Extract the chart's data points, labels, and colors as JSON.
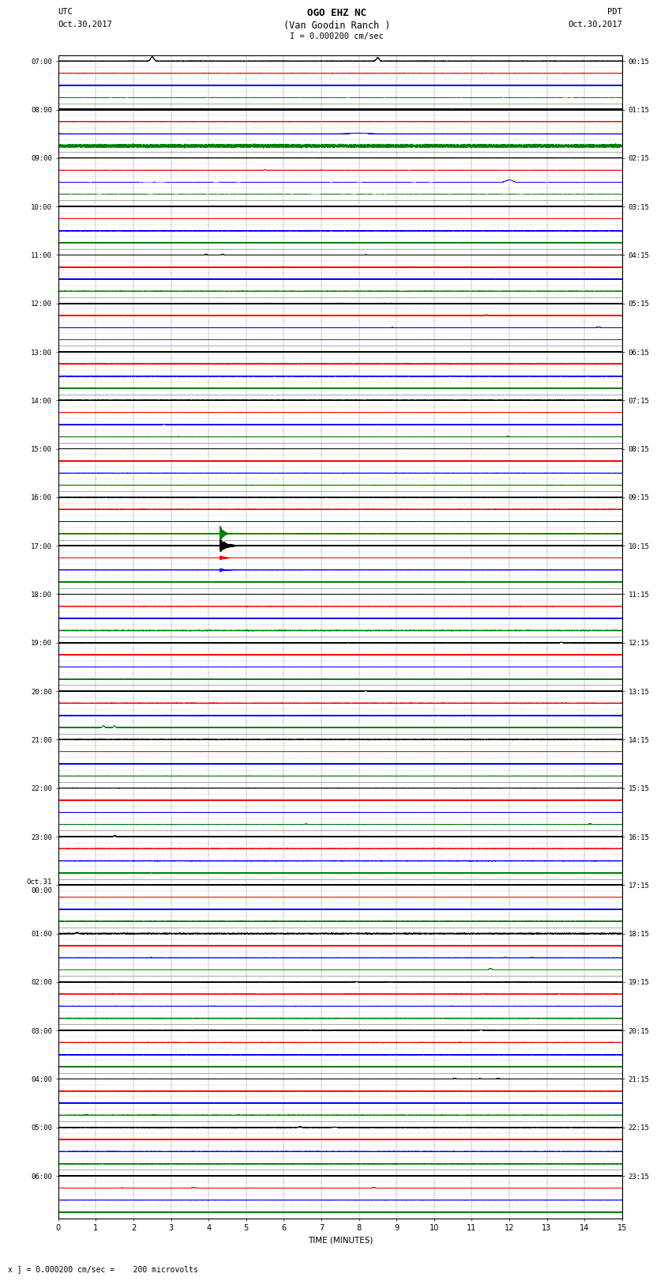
{
  "title_line1": "OGO EHZ NC",
  "title_line2": "(Van Goodin Ranch )",
  "title_line3": "I = 0.000200 cm/sec",
  "left_label_top": "UTC",
  "left_label_date": "Oct.30,2017",
  "right_label_top": "PDT",
  "right_label_date": "Oct.30,2017",
  "bottom_label": "TIME (MINUTES)",
  "bottom_note": "x ] = 0.000200 cm/sec =    200 microvolts",
  "xlabel_ticks": [
    0,
    1,
    2,
    3,
    4,
    5,
    6,
    7,
    8,
    9,
    10,
    11,
    12,
    13,
    14,
    15
  ],
  "left_time_labels": [
    "07:00",
    "08:00",
    "09:00",
    "10:00",
    "11:00",
    "12:00",
    "13:00",
    "14:00",
    "15:00",
    "16:00",
    "17:00",
    "18:00",
    "19:00",
    "20:00",
    "21:00",
    "22:00",
    "23:00",
    "Oct.31\n00:00",
    "01:00",
    "02:00",
    "03:00",
    "04:00",
    "05:00",
    "06:00"
  ],
  "right_time_labels": [
    "00:15",
    "01:15",
    "02:15",
    "03:15",
    "04:15",
    "05:15",
    "06:15",
    "07:15",
    "08:15",
    "09:15",
    "10:15",
    "11:15",
    "12:15",
    "13:15",
    "14:15",
    "15:15",
    "16:15",
    "17:15",
    "18:15",
    "19:15",
    "20:15",
    "21:15",
    "22:15",
    "23:15"
  ],
  "n_hour_rows": 24,
  "sub_traces_per_row": 4,
  "n_minutes": 15,
  "sample_rate": 100,
  "bg_color": "#ffffff",
  "grid_color": "#aaaaaa",
  "trace_colors_cycle": [
    "black",
    "red",
    "blue",
    "green"
  ],
  "noise_base": 0.018,
  "title_fontsize": 9,
  "label_fontsize": 7.5,
  "tick_fontsize": 7,
  "fig_width": 8.5,
  "fig_height": 16.13
}
